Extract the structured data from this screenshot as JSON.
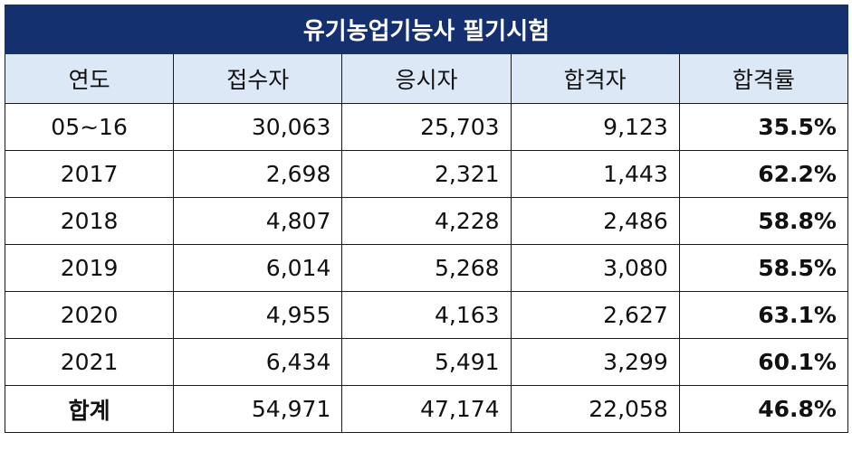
{
  "title": "유기농업기능사 필기시험",
  "columns": [
    "연도",
    "접수자",
    "응시자",
    "합격자",
    "합격률"
  ],
  "rows": [
    {
      "year": "05~16",
      "applicants": "30,063",
      "examinees": "25,703",
      "passers": "9,123",
      "pass_rate": "35.5%"
    },
    {
      "year": "2017",
      "applicants": "2,698",
      "examinees": "2,321",
      "passers": "1,443",
      "pass_rate": "62.2%"
    },
    {
      "year": "2018",
      "applicants": "4,807",
      "examinees": "4,228",
      "passers": "2,486",
      "pass_rate": "58.8%"
    },
    {
      "year": "2019",
      "applicants": "6,014",
      "examinees": "5,268",
      "passers": "3,080",
      "pass_rate": "58.5%"
    },
    {
      "year": "2020",
      "applicants": "4,955",
      "examinees": "4,163",
      "passers": "2,627",
      "pass_rate": "63.1%"
    },
    {
      "year": "2021",
      "applicants": "6,434",
      "examinees": "5,491",
      "passers": "3,299",
      "pass_rate": "60.1%"
    }
  ],
  "total": {
    "label": "합계",
    "applicants": "54,971",
    "examinees": "47,174",
    "passers": "22,058",
    "pass_rate": "46.8%"
  },
  "colors": {
    "title_bg": "#14306e",
    "header_bg": "#dce8f5",
    "border": "#1a1a1a"
  }
}
